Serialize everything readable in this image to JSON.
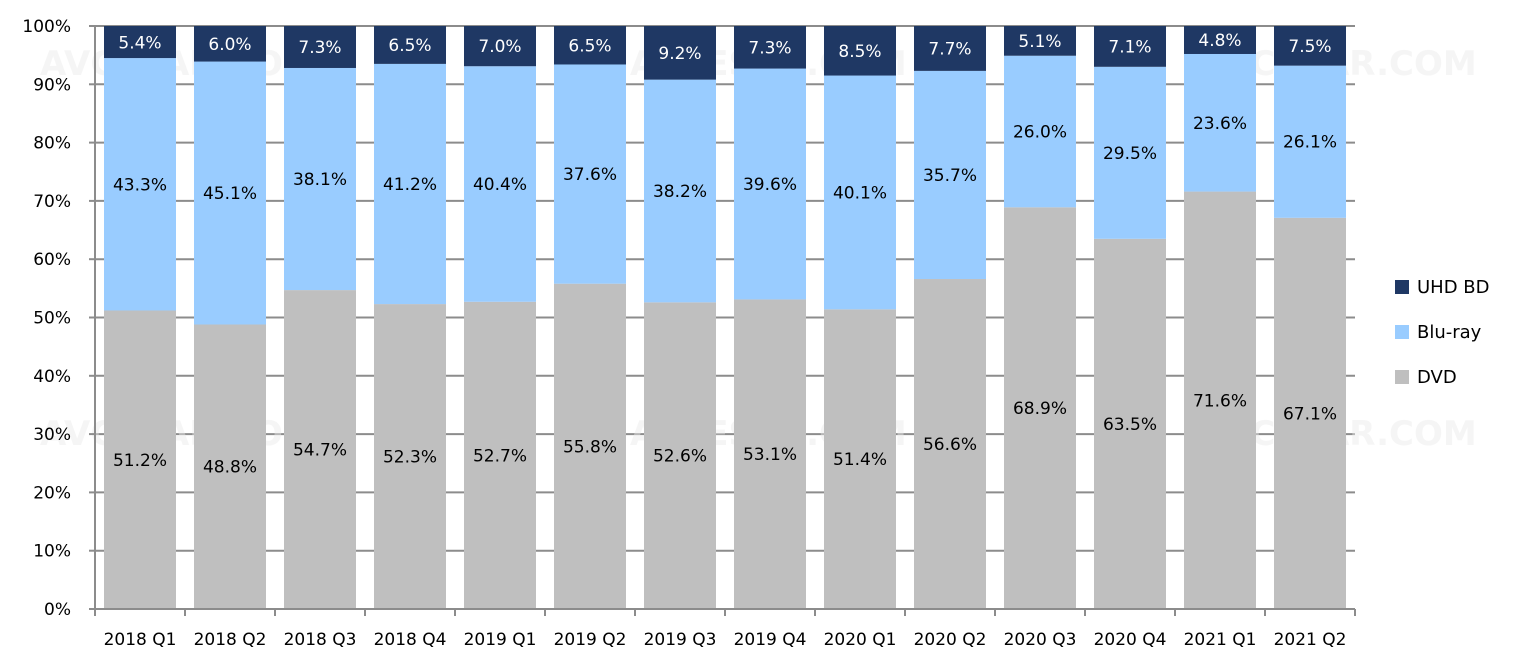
{
  "chart_data": {
    "type": "bar",
    "stacked": true,
    "title": "",
    "xlabel": "",
    "ylabel": "",
    "ylim": [
      0,
      100
    ],
    "yticks": [
      "0%",
      "10%",
      "20%",
      "30%",
      "40%",
      "50%",
      "60%",
      "70%",
      "80%",
      "90%",
      "100%"
    ],
    "grid": true,
    "legend_position": "right",
    "categories": [
      "2018 Q1",
      "2018 Q2",
      "2018 Q3",
      "2018 Q4",
      "2019 Q1",
      "2019 Q2",
      "2019 Q3",
      "2019 Q4",
      "2020 Q1",
      "2020 Q2",
      "2020 Q3",
      "2020 Q4",
      "2021 Q1",
      "2021 Q2"
    ],
    "series": [
      {
        "name": "DVD",
        "color": "#bfbfbf",
        "values": [
          51.2,
          48.8,
          54.7,
          52.3,
          52.7,
          55.8,
          52.6,
          53.1,
          51.4,
          56.6,
          68.9,
          63.5,
          71.6,
          67.1
        ],
        "labels": [
          "51.2%",
          "48.8%",
          "54.7%",
          "52.3%",
          "52.7%",
          "55.8%",
          "52.6%",
          "53.1%",
          "51.4%",
          "56.6%",
          "68.9%",
          "63.5%",
          "71.6%",
          "67.1%"
        ]
      },
      {
        "name": "Blu-ray",
        "color": "#99ccff",
        "values": [
          43.3,
          45.1,
          38.1,
          41.2,
          40.4,
          37.6,
          38.2,
          39.6,
          40.1,
          35.7,
          26.0,
          29.5,
          23.6,
          26.1
        ],
        "labels": [
          "43.3%",
          "45.1%",
          "38.1%",
          "41.2%",
          "40.4%",
          "37.6%",
          "38.2%",
          "39.6%",
          "40.1%",
          "35.7%",
          "26.0%",
          "29.5%",
          "23.6%",
          "26.1%"
        ]
      },
      {
        "name": "UHD BD",
        "color": "#1f3864",
        "values": [
          5.4,
          6.0,
          7.3,
          6.5,
          7.0,
          6.5,
          9.2,
          7.3,
          8.5,
          7.7,
          5.1,
          7.1,
          4.8,
          7.5
        ],
        "labels": [
          "5.4%",
          "6.0%",
          "7.3%",
          "6.5%",
          "7.0%",
          "6.5%",
          "9.2%",
          "7.3%",
          "8.5%",
          "7.7%",
          "5.1%",
          "7.1%",
          "4.8%",
          "7.5%"
        ]
      }
    ],
    "legend": [
      "UHD BD",
      "Blu-ray",
      "DVD"
    ],
    "watermark": "AVCESAR.COM"
  }
}
